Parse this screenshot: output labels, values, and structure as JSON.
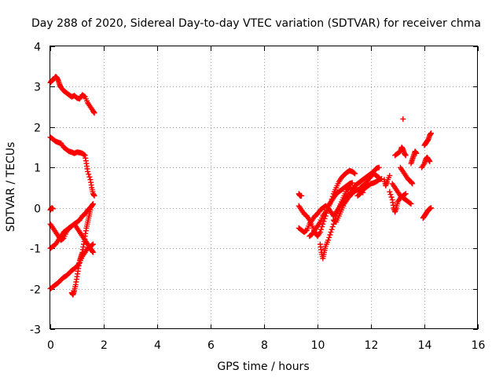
{
  "chart_data": {
    "type": "scatter",
    "title": "Day 288 of 2020, Sidereal Day-to-day VTEC variation (SDTVAR) for receiver chma",
    "xlabel": "GPS time / hours",
    "ylabel": "SDTVAR / TECUs",
    "xlim": [
      0,
      16
    ],
    "ylim": [
      -3,
      4
    ],
    "xticks": [
      "0",
      "2",
      "4",
      "6",
      "8",
      "10",
      "12",
      "14",
      "16"
    ],
    "yticks": [
      "-3",
      "-2",
      "-1",
      "0",
      "1",
      "2",
      "3",
      "4"
    ],
    "grid": true,
    "marker": "plus",
    "color": "#ff0000",
    "segments": [
      [
        [
          0.0,
          3.1
        ],
        [
          0.05,
          3.15
        ],
        [
          0.1,
          3.18
        ],
        [
          0.15,
          3.2
        ],
        [
          0.2,
          3.25
        ],
        [
          0.25,
          3.22
        ],
        [
          0.3,
          3.15
        ],
        [
          0.35,
          3.05
        ],
        [
          0.4,
          2.98
        ],
        [
          0.5,
          2.9
        ],
        [
          0.6,
          2.85
        ],
        [
          0.7,
          2.8
        ],
        [
          0.8,
          2.75
        ],
        [
          0.9,
          2.78
        ],
        [
          1.0,
          2.72
        ],
        [
          1.1,
          2.7
        ],
        [
          1.2,
          2.8
        ],
        [
          1.3,
          2.75
        ],
        [
          1.4,
          2.6
        ],
        [
          1.5,
          2.5
        ],
        [
          1.6,
          2.4
        ],
        [
          1.65,
          2.35
        ]
      ],
      [
        [
          0.0,
          1.75
        ],
        [
          0.1,
          1.7
        ],
        [
          0.2,
          1.65
        ],
        [
          0.3,
          1.62
        ],
        [
          0.4,
          1.6
        ],
        [
          0.5,
          1.5
        ],
        [
          0.6,
          1.45
        ],
        [
          0.7,
          1.4
        ],
        [
          0.8,
          1.38
        ],
        [
          0.9,
          1.35
        ],
        [
          1.0,
          1.38
        ],
        [
          1.1,
          1.37
        ],
        [
          1.2,
          1.35
        ],
        [
          1.3,
          1.3
        ],
        [
          1.35,
          1.1
        ],
        [
          1.4,
          0.9
        ],
        [
          1.5,
          0.7
        ],
        [
          1.55,
          0.5
        ],
        [
          1.6,
          0.35
        ],
        [
          1.65,
          0.3
        ]
      ],
      [
        [
          0.0,
          -0.4
        ],
        [
          0.1,
          -0.5
        ],
        [
          0.2,
          -0.6
        ],
        [
          0.3,
          -0.7
        ],
        [
          0.4,
          -0.8
        ],
        [
          0.5,
          -0.75
        ],
        [
          0.6,
          -0.6
        ],
        [
          0.7,
          -0.5
        ],
        [
          0.8,
          -0.45
        ],
        [
          0.9,
          -0.4
        ],
        [
          1.0,
          -0.5
        ],
        [
          1.1,
          -0.6
        ],
        [
          1.2,
          -0.7
        ],
        [
          1.3,
          -0.8
        ],
        [
          1.4,
          -0.9
        ],
        [
          1.5,
          -1.0
        ],
        [
          1.55,
          -1.05
        ],
        [
          1.6,
          -1.1
        ]
      ],
      [
        [
          0.0,
          -1.0
        ],
        [
          0.1,
          -0.95
        ],
        [
          0.2,
          -0.9
        ],
        [
          0.3,
          -0.8
        ],
        [
          0.4,
          -0.7
        ],
        [
          0.5,
          -0.6
        ],
        [
          0.6,
          -0.55
        ],
        [
          0.7,
          -0.5
        ],
        [
          0.8,
          -0.45
        ],
        [
          0.9,
          -0.4
        ],
        [
          1.0,
          -0.35
        ],
        [
          1.1,
          -0.3
        ],
        [
          1.2,
          -0.2
        ],
        [
          1.3,
          -0.15
        ],
        [
          1.4,
          -0.05
        ],
        [
          1.5,
          0.0
        ],
        [
          1.55,
          0.05
        ],
        [
          1.6,
          0.1
        ]
      ],
      [
        [
          0.0,
          -2.0
        ],
        [
          0.1,
          -1.95
        ],
        [
          0.2,
          -1.9
        ],
        [
          0.3,
          -1.85
        ],
        [
          0.4,
          -1.78
        ],
        [
          0.5,
          -1.72
        ],
        [
          0.6,
          -1.68
        ],
        [
          0.7,
          -1.62
        ],
        [
          0.8,
          -1.55
        ],
        [
          0.9,
          -1.5
        ],
        [
          1.0,
          -1.45
        ],
        [
          1.1,
          -1.35
        ],
        [
          1.2,
          -1.2
        ],
        [
          1.3,
          -1.1
        ],
        [
          1.4,
          -1.0
        ],
        [
          1.5,
          -0.95
        ],
        [
          1.6,
          -0.9
        ]
      ],
      [
        [
          0.8,
          -2.1
        ],
        [
          0.85,
          -2.15
        ],
        [
          0.9,
          -2.05
        ],
        [
          0.95,
          -1.9
        ],
        [
          1.0,
          -1.7
        ],
        [
          1.05,
          -1.5
        ],
        [
          1.1,
          -1.3
        ],
        [
          1.15,
          -1.2
        ],
        [
          1.2,
          -1.1
        ],
        [
          1.25,
          -0.9
        ],
        [
          1.3,
          -0.7
        ],
        [
          1.35,
          -0.5
        ],
        [
          1.4,
          -0.35
        ],
        [
          1.45,
          -0.2
        ],
        [
          1.5,
          -0.05
        ]
      ],
      [
        [
          0.0,
          -0.05
        ],
        [
          0.05,
          0.0
        ],
        [
          0.1,
          -0.02
        ]
      ],
      [
        [
          9.3,
          0.35
        ],
        [
          9.35,
          0.3
        ],
        [
          9.4,
          0.3
        ]
      ],
      [
        [
          9.3,
          0.05
        ],
        [
          9.4,
          -0.05
        ],
        [
          9.5,
          -0.15
        ],
        [
          9.6,
          -0.2
        ],
        [
          9.7,
          -0.3
        ],
        [
          9.8,
          -0.45
        ],
        [
          9.9,
          -0.6
        ],
        [
          10.0,
          -0.7
        ],
        [
          10.1,
          -0.6
        ],
        [
          10.2,
          -0.4
        ],
        [
          10.3,
          -0.2
        ],
        [
          10.4,
          0.0
        ],
        [
          10.5,
          0.15
        ],
        [
          10.6,
          0.35
        ],
        [
          10.7,
          0.5
        ],
        [
          10.8,
          0.65
        ],
        [
          10.9,
          0.75
        ],
        [
          11.0,
          0.82
        ],
        [
          11.1,
          0.88
        ],
        [
          11.2,
          0.92
        ],
        [
          11.3,
          0.9
        ],
        [
          11.4,
          0.85
        ]
      ],
      [
        [
          9.3,
          -0.5
        ],
        [
          9.4,
          -0.55
        ],
        [
          9.5,
          -0.6
        ],
        [
          9.6,
          -0.55
        ],
        [
          9.7,
          -0.4
        ],
        [
          9.8,
          -0.3
        ],
        [
          9.9,
          -0.2
        ],
        [
          10.0,
          -0.15
        ],
        [
          10.1,
          -0.05
        ],
        [
          10.2,
          0.0
        ],
        [
          10.3,
          0.05
        ],
        [
          10.4,
          0.0
        ],
        [
          10.5,
          -0.1
        ],
        [
          10.6,
          -0.2
        ],
        [
          10.7,
          -0.1
        ],
        [
          10.8,
          0.0
        ],
        [
          10.9,
          0.15
        ],
        [
          11.0,
          0.3
        ],
        [
          11.1,
          0.45
        ],
        [
          11.2,
          0.5
        ],
        [
          11.3,
          0.45
        ],
        [
          11.4,
          0.55
        ],
        [
          11.5,
          0.6
        ],
        [
          11.6,
          0.65
        ],
        [
          11.7,
          0.7
        ],
        [
          11.8,
          0.75
        ],
        [
          11.9,
          0.8
        ],
        [
          12.0,
          0.85
        ],
        [
          12.1,
          0.9
        ],
        [
          12.2,
          0.98
        ],
        [
          12.3,
          1.0
        ]
      ],
      [
        [
          9.7,
          -0.7
        ],
        [
          9.8,
          -0.65
        ],
        [
          9.9,
          -0.55
        ],
        [
          10.0,
          -0.45
        ],
        [
          10.1,
          -0.35
        ],
        [
          10.2,
          -0.2
        ],
        [
          10.3,
          -0.1
        ],
        [
          10.4,
          0.05
        ],
        [
          10.5,
          0.15
        ],
        [
          10.6,
          0.25
        ],
        [
          10.7,
          0.35
        ],
        [
          10.8,
          0.4
        ],
        [
          10.9,
          0.45
        ],
        [
          11.0,
          0.5
        ],
        [
          11.1,
          0.55
        ],
        [
          11.2,
          0.6
        ],
        [
          11.3,
          0.62
        ]
      ],
      [
        [
          10.1,
          -0.9
        ],
        [
          10.15,
          -1.1
        ],
        [
          10.2,
          -1.25
        ],
        [
          10.25,
          -1.1
        ],
        [
          10.3,
          -0.95
        ],
        [
          10.4,
          -0.8
        ],
        [
          10.5,
          -0.6
        ],
        [
          10.6,
          -0.4
        ],
        [
          10.7,
          -0.2
        ],
        [
          10.8,
          0.0
        ],
        [
          10.9,
          0.1
        ],
        [
          11.0,
          0.2
        ],
        [
          11.1,
          0.3
        ],
        [
          11.2,
          0.35
        ],
        [
          11.3,
          0.4
        ],
        [
          11.4,
          0.42
        ],
        [
          11.5,
          0.45
        ],
        [
          11.6,
          0.4
        ],
        [
          11.7,
          0.38
        ]
      ],
      [
        [
          10.6,
          -0.3
        ],
        [
          10.7,
          -0.35
        ],
        [
          10.8,
          -0.2
        ],
        [
          10.9,
          -0.05
        ],
        [
          11.0,
          0.1
        ],
        [
          11.1,
          0.2
        ],
        [
          11.2,
          0.3
        ],
        [
          11.3,
          0.35
        ]
      ],
      [
        [
          11.5,
          0.3
        ],
        [
          11.6,
          0.35
        ],
        [
          11.7,
          0.45
        ],
        [
          11.8,
          0.5
        ],
        [
          11.9,
          0.55
        ],
        [
          12.0,
          0.6
        ],
        [
          12.1,
          0.62
        ],
        [
          12.2,
          0.65
        ],
        [
          12.3,
          0.7
        ],
        [
          12.4,
          0.72
        ]
      ],
      [
        [
          11.6,
          0.5
        ],
        [
          11.7,
          0.55
        ],
        [
          11.8,
          0.6
        ],
        [
          11.9,
          0.7
        ],
        [
          12.0,
          0.78
        ],
        [
          12.1,
          0.85
        ],
        [
          12.2,
          0.8
        ],
        [
          12.3,
          0.75
        ]
      ],
      [
        [
          12.8,
          0.6
        ],
        [
          12.9,
          0.5
        ],
        [
          13.0,
          0.4
        ],
        [
          13.1,
          0.3
        ],
        [
          13.2,
          0.25
        ],
        [
          13.3,
          0.2
        ],
        [
          13.4,
          0.15
        ],
        [
          13.5,
          0.1
        ]
      ],
      [
        [
          12.7,
          0.4
        ],
        [
          12.8,
          0.2
        ],
        [
          12.85,
          0.0
        ],
        [
          12.9,
          -0.1
        ],
        [
          12.95,
          0.0
        ],
        [
          13.0,
          0.15
        ],
        [
          13.1,
          0.25
        ],
        [
          13.2,
          0.3
        ],
        [
          13.3,
          0.35
        ]
      ],
      [
        [
          13.1,
          1.0
        ],
        [
          13.2,
          0.9
        ],
        [
          13.3,
          0.8
        ],
        [
          13.4,
          0.7
        ],
        [
          13.5,
          0.65
        ],
        [
          13.55,
          0.6
        ]
      ],
      [
        [
          12.9,
          1.3
        ],
        [
          13.0,
          1.35
        ],
        [
          13.1,
          1.4
        ],
        [
          13.15,
          1.5
        ],
        [
          13.2,
          1.45
        ],
        [
          13.25,
          1.35
        ],
        [
          13.3,
          1.3
        ]
      ],
      [
        [
          13.5,
          1.1
        ],
        [
          13.55,
          1.2
        ],
        [
          13.6,
          1.3
        ],
        [
          13.65,
          1.4
        ],
        [
          13.7,
          1.35
        ]
      ],
      [
        [
          13.2,
          2.2
        ]
      ],
      [
        [
          13.9,
          1.0
        ],
        [
          14.0,
          1.1
        ],
        [
          14.05,
          1.2
        ],
        [
          14.1,
          1.25
        ],
        [
          14.15,
          1.2
        ],
        [
          14.2,
          1.15
        ]
      ],
      [
        [
          14.0,
          1.55
        ],
        [
          14.05,
          1.6
        ],
        [
          14.1,
          1.65
        ],
        [
          14.15,
          1.7
        ],
        [
          14.2,
          1.8
        ],
        [
          14.25,
          1.85
        ]
      ],
      [
        [
          13.95,
          -0.25
        ],
        [
          14.0,
          -0.2
        ],
        [
          14.05,
          -0.15
        ],
        [
          14.1,
          -0.1
        ],
        [
          14.15,
          -0.05
        ],
        [
          14.2,
          -0.02
        ],
        [
          14.25,
          0.0
        ]
      ],
      [
        [
          12.5,
          0.7
        ],
        [
          12.55,
          0.55
        ],
        [
          12.6,
          0.65
        ],
        [
          12.7,
          0.8
        ]
      ]
    ]
  }
}
